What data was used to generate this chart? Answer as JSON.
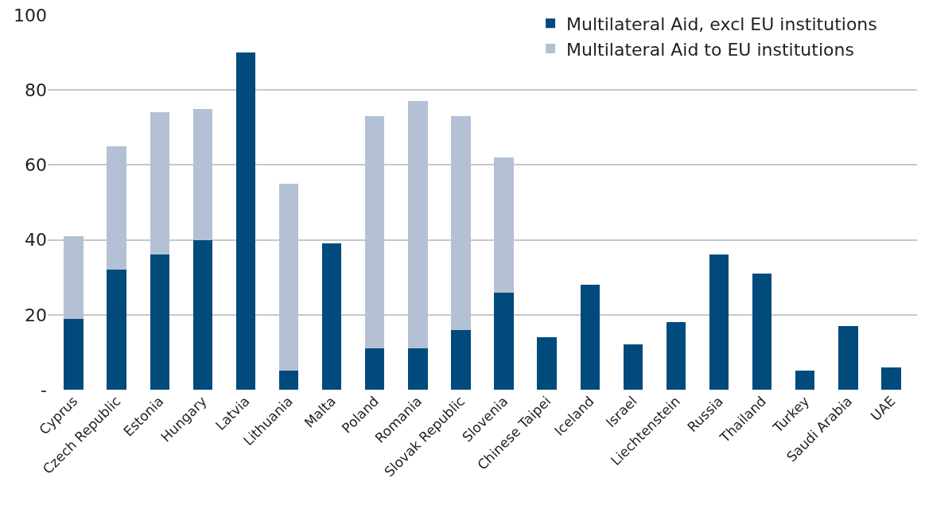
{
  "chart_data": {
    "type": "bar",
    "stacked": true,
    "categories": [
      "Cyprus",
      "Czech Republic",
      "Estonia",
      "Hungary",
      "Latvia",
      "Lithuania",
      "Malta",
      "Poland",
      "Romania",
      "Slovak Republic",
      "Slovenia",
      "Chinese Taipei",
      "Iceland",
      "Israel",
      "Liechtenstein",
      "Russia",
      "Thailand",
      "Turkey",
      "Saudi Arabia",
      "UAE"
    ],
    "series": [
      {
        "name": "Multilateral Aid, excl EU institutions",
        "color": "#004a7c",
        "values": [
          19,
          32,
          36,
          40,
          90,
          5,
          39,
          11,
          11,
          16,
          26,
          14,
          28,
          12,
          18,
          36,
          31,
          5,
          17,
          6
        ]
      },
      {
        "name": "Multilateral Aid to EU institutions",
        "color": "#b4c1d4",
        "values": [
          22,
          33,
          38,
          35,
          null,
          50,
          null,
          62,
          66,
          57,
          36,
          null,
          null,
          null,
          null,
          null,
          null,
          null,
          null,
          null
        ]
      }
    ],
    "ylim": [
      0,
      100
    ],
    "yticks": [
      {
        "value": 0,
        "label": "-"
      },
      20,
      40,
      60,
      80,
      100
    ],
    "grid": "y",
    "legend": "top right"
  }
}
